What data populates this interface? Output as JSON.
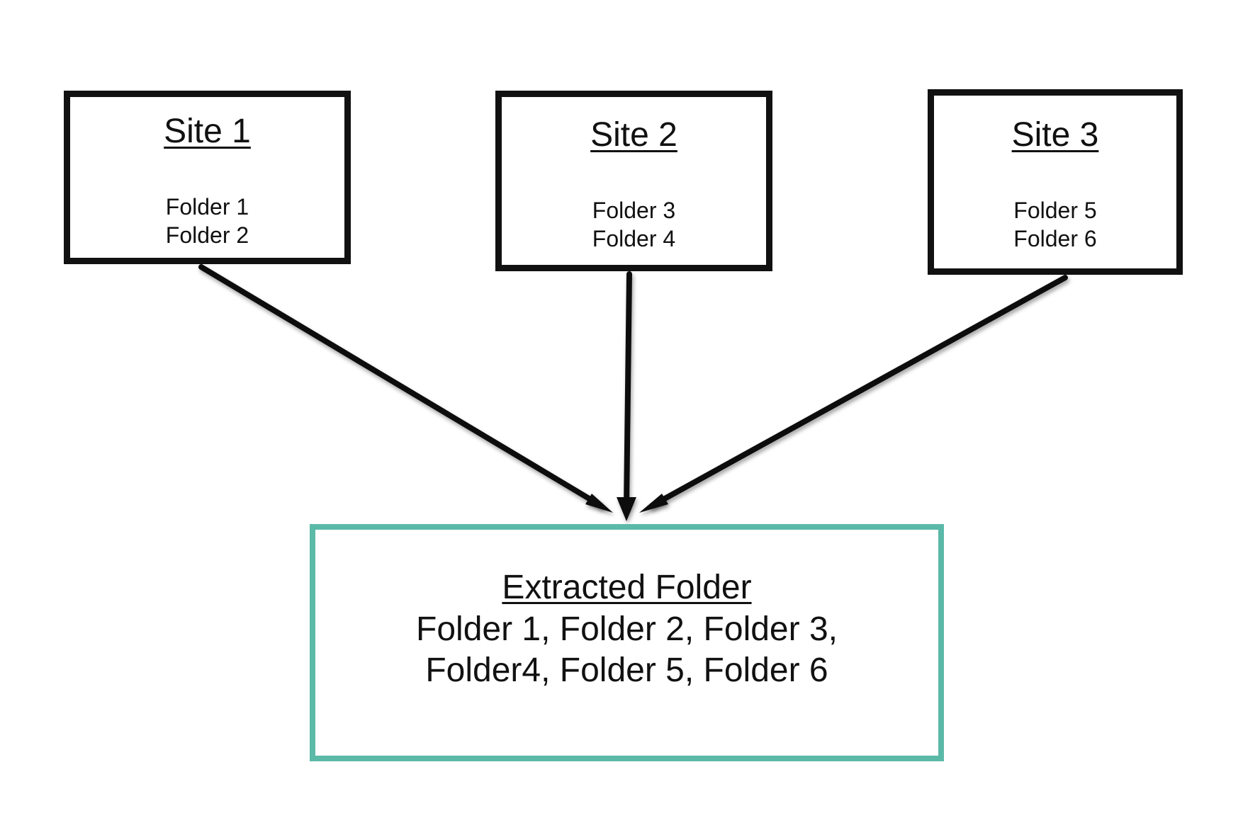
{
  "sites": [
    {
      "title": "Site 1",
      "folders": [
        "Folder 1",
        "Folder 2"
      ]
    },
    {
      "title": "Site 2",
      "folders": [
        "Folder 3",
        "Folder 4"
      ]
    },
    {
      "title": "Site 3",
      "folders": [
        "Folder 5",
        "Folder 6"
      ]
    }
  ],
  "extracted": {
    "title": "Extracted Folder",
    "lines": [
      "Folder 1, Folder 2, Folder 3,",
      "Folder4, Folder 5, Folder 6"
    ],
    "border_color": "#5bb9a8"
  }
}
